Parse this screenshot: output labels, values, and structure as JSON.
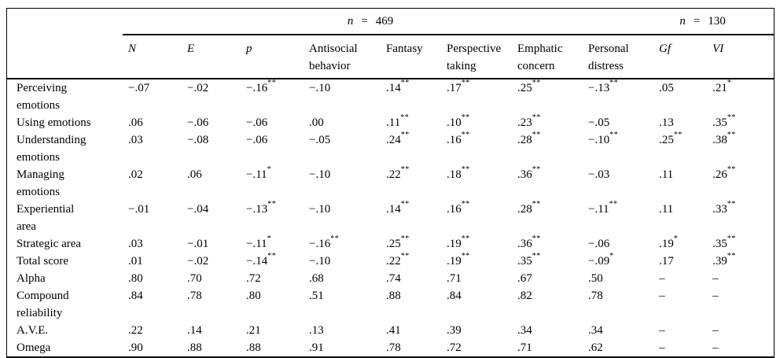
{
  "page": {
    "background": "#ffffff",
    "text_color": "#000000",
    "rule_color": "#000000"
  },
  "table": {
    "group_headers": [
      {
        "var": "n",
        "op": "=",
        "value": "469"
      },
      {
        "var": "n",
        "op": "=",
        "value": "130"
      }
    ],
    "columns": [
      {
        "label": "N",
        "italic": true
      },
      {
        "label": "E",
        "italic": true
      },
      {
        "label": "p",
        "italic": true
      },
      {
        "label": "Antisocial behavior",
        "italic": false
      },
      {
        "label": "Fantasy",
        "italic": false
      },
      {
        "label": "Perspective taking",
        "italic": false
      },
      {
        "label": "Emphatic concern",
        "italic": false
      },
      {
        "label": "Personal distress",
        "italic": false
      },
      {
        "label": "Gf",
        "italic": true
      },
      {
        "label": "VI",
        "italic": true
      }
    ],
    "rows": [
      {
        "label": "Perceiving emotions",
        "values": [
          "−.07",
          "−.02",
          "−.16**",
          "−.10",
          ".14**",
          ".17**",
          ".25**",
          "−.13**",
          ".05",
          ".21*"
        ]
      },
      {
        "label": "Using emotions",
        "values": [
          ".06",
          "−.06",
          "−.06",
          ".00",
          ".11**",
          ".10**",
          ".23**",
          "−.05",
          ".13",
          ".35**"
        ]
      },
      {
        "label": "Understanding emotions",
        "values": [
          ".03",
          "−.08",
          "−.06",
          "−.05",
          ".24**",
          ".16**",
          ".28**",
          "−.10**",
          ".25**",
          ".38**"
        ]
      },
      {
        "label": "Managing emotions",
        "values": [
          ".02",
          ".06",
          "−.11*",
          "−.10",
          ".22**",
          ".18**",
          ".36**",
          "−.03",
          ".11",
          ".26**"
        ]
      },
      {
        "label": "Experiential area",
        "values": [
          "−.01",
          "−.04",
          "−.13**",
          "−.10",
          ".14**",
          ".16**",
          ".28**",
          "−.11**",
          ".11",
          ".33**"
        ]
      },
      {
        "label": "Strategic area",
        "values": [
          ".03",
          "−.01",
          "−.11*",
          "−.16**",
          ".25**",
          ".19**",
          ".36**",
          "−.06",
          ".19*",
          ".35**"
        ]
      },
      {
        "label": "Total score",
        "values": [
          ".01",
          "−.02",
          "−.14**",
          "−.10",
          ".22**",
          ".19**",
          ".35**",
          "−.09*",
          ".17",
          ".39**"
        ]
      },
      {
        "label": "Alpha",
        "values": [
          ".80",
          ".70",
          ".72",
          ".68",
          ".74",
          ".71",
          ".67",
          ".50",
          "–",
          "–"
        ]
      },
      {
        "label": "Compound reliability",
        "values": [
          ".84",
          ".78",
          ".80",
          ".51",
          ".88",
          ".84",
          ".82",
          ".78",
          "–",
          "–"
        ]
      },
      {
        "label": "A.V.E.",
        "values": [
          ".22",
          ".14",
          ".21",
          ".13",
          ".41",
          ".39",
          ".34",
          ".34",
          "–",
          "–"
        ]
      },
      {
        "label": "Omega",
        "values": [
          ".90",
          ".88",
          ".88",
          ".91",
          ".78",
          ".72",
          ".71",
          ".62",
          "–",
          "–"
        ]
      }
    ]
  }
}
